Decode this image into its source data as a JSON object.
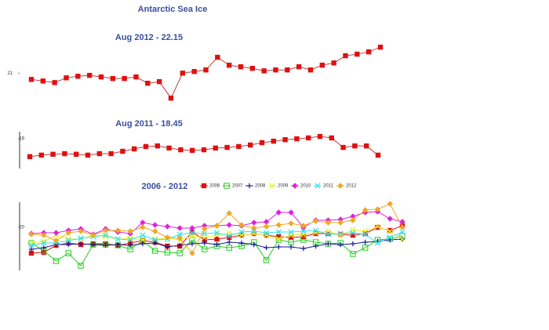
{
  "title": "Antarctic Sea Ice",
  "chart_data": [
    {
      "type": "line",
      "title": "Aug 2012 - 22.15",
      "ylim": [
        19.55,
        22.85
      ],
      "yticks": [
        21
      ],
      "axis_line": false,
      "series": [
        {
          "color": "#e01010",
          "line_color": "#c04040",
          "marker": "square",
          "values": [
            20.72,
            20.65,
            20.58,
            20.79,
            20.86,
            20.9,
            20.83,
            20.76,
            20.76,
            20.83,
            20.55,
            20.62,
            19.89,
            21.0,
            21.07,
            21.14,
            21.7,
            21.35,
            21.28,
            21.21,
            21.1,
            21.14,
            21.14,
            21.28,
            21.14,
            21.35,
            21.45,
            21.77,
            21.84,
            21.94,
            22.15
          ]
        }
      ]
    },
    {
      "type": "line",
      "title": "Aug 2011 - 18.45",
      "ylim": [
        18.0,
        19.45
      ],
      "yticks": [
        19
      ],
      "axis_line": true,
      "series": [
        {
          "color": "#e01010",
          "line_color": "#c04040",
          "marker": "square",
          "values": [
            18.4,
            18.45,
            18.48,
            18.5,
            18.48,
            18.45,
            18.5,
            18.5,
            18.58,
            18.66,
            18.74,
            18.76,
            18.69,
            18.63,
            18.61,
            18.63,
            18.69,
            18.71,
            18.74,
            18.79,
            18.87,
            18.92,
            18.97,
            19.0,
            19.03,
            19.08,
            19.03,
            18.71,
            18.76,
            18.76,
            18.45
          ]
        }
      ]
    },
    {
      "type": "line",
      "title": "2006 - 2012",
      "ylim": [
        17.25,
        22.0
      ],
      "yticks": [
        20
      ],
      "axis_line": true,
      "legend": "top",
      "series": [
        {
          "name": "2006",
          "color": "#e01010",
          "line_color": "#e01010",
          "marker": "square",
          "values": [
            18.35,
            18.4,
            18.85,
            19,
            18.9,
            18.95,
            18.95,
            18.85,
            19,
            19.15,
            19.05,
            18.8,
            18.8,
            19.7,
            19.2,
            19.25,
            19.35,
            19.5,
            19.6,
            19.5,
            19.4,
            19.35,
            19.4,
            19.6,
            19.6,
            19.55,
            19.5,
            19.6,
            20,
            19.8,
            20.1
          ]
        },
        {
          "name": "2007",
          "color": "#22cc22",
          "line_color": "#22cc22",
          "marker": "open-square",
          "values": [
            19,
            18.5,
            17.85,
            18.35,
            17.55,
            18.9,
            18.9,
            18.85,
            18.6,
            19.15,
            18.5,
            18.4,
            18.35,
            19.2,
            18.6,
            18.8,
            18.7,
            18.8,
            19.05,
            17.9,
            19.2,
            19.05,
            19.2,
            19.05,
            18.95,
            19,
            18.3,
            18.7,
            19.2,
            19.25,
            19.45
          ]
        },
        {
          "name": "2008",
          "color": "#1a1a9a",
          "line_color": "#1a1a9a",
          "marker": "plus",
          "values": [
            18.6,
            18.7,
            18.9,
            18.9,
            18.95,
            18.9,
            18.85,
            18.9,
            18.85,
            18.95,
            19,
            18.75,
            18.85,
            18.95,
            19,
            18.9,
            19.05,
            19,
            18.9,
            18.7,
            18.75,
            18.75,
            18.65,
            18.8,
            18.95,
            18.9,
            18.95,
            19.05,
            19.1,
            19.2,
            19.25
          ]
        },
        {
          "name": "2009",
          "color": "#f0f020",
          "line_color": "#f0f020",
          "marker": "x",
          "values": [
            19,
            19.1,
            19.5,
            19.25,
            19.25,
            19.5,
            19.4,
            19.25,
            19.3,
            19.2,
            19.25,
            19.3,
            19.2,
            19.45,
            19.35,
            19.5,
            19.65,
            19.5,
            19.6,
            19.5,
            19.25,
            19.5,
            19.55,
            19.65,
            19.75,
            19.5,
            19.85,
            19.75,
            20.05,
            19.75,
            19.25
          ]
        },
        {
          "name": "2010",
          "color": "#dd22dd",
          "line_color": "#dd22dd",
          "marker": "diamond",
          "values": [
            19.6,
            19.65,
            19.65,
            19.8,
            19.9,
            19.55,
            19.9,
            19.7,
            19.6,
            20.3,
            20.15,
            20.05,
            19.95,
            19.95,
            20.1,
            20.1,
            20.15,
            20.1,
            20.3,
            20.35,
            20.95,
            20.95,
            20,
            20.45,
            20.45,
            20.5,
            20.7,
            20.95,
            21,
            20.55,
            20.35
          ]
        },
        {
          "name": "2011",
          "color": "#33e0f0",
          "line_color": "#33e0f0",
          "marker": "x",
          "values": [
            18.85,
            19,
            19,
            19.15,
            19.3,
            19.4,
            19.5,
            19.25,
            19.2,
            19.5,
            19.2,
            19.25,
            19.55,
            19.65,
            19.6,
            19.65,
            19.45,
            19.7,
            19.75,
            19.65,
            19.7,
            19.7,
            19.75,
            19.8,
            19.55,
            19.6,
            19.65,
            19.55,
            19,
            19.35,
            19.7
          ]
        },
        {
          "name": "2012",
          "color": "#f0a820",
          "line_color": "#f0a820",
          "marker": "diamond",
          "values": [
            19.55,
            19.5,
            19.15,
            19.65,
            19.75,
            19.5,
            19.8,
            19.8,
            19.75,
            20,
            19.75,
            19.35,
            19.3,
            18.35,
            19.9,
            20.1,
            20.9,
            20.15,
            19.95,
            20.05,
            20.15,
            20.25,
            20.1,
            20.4,
            20.3,
            20.3,
            20.45,
            21.1,
            21.15,
            21.5,
            20
          ]
        }
      ]
    }
  ]
}
